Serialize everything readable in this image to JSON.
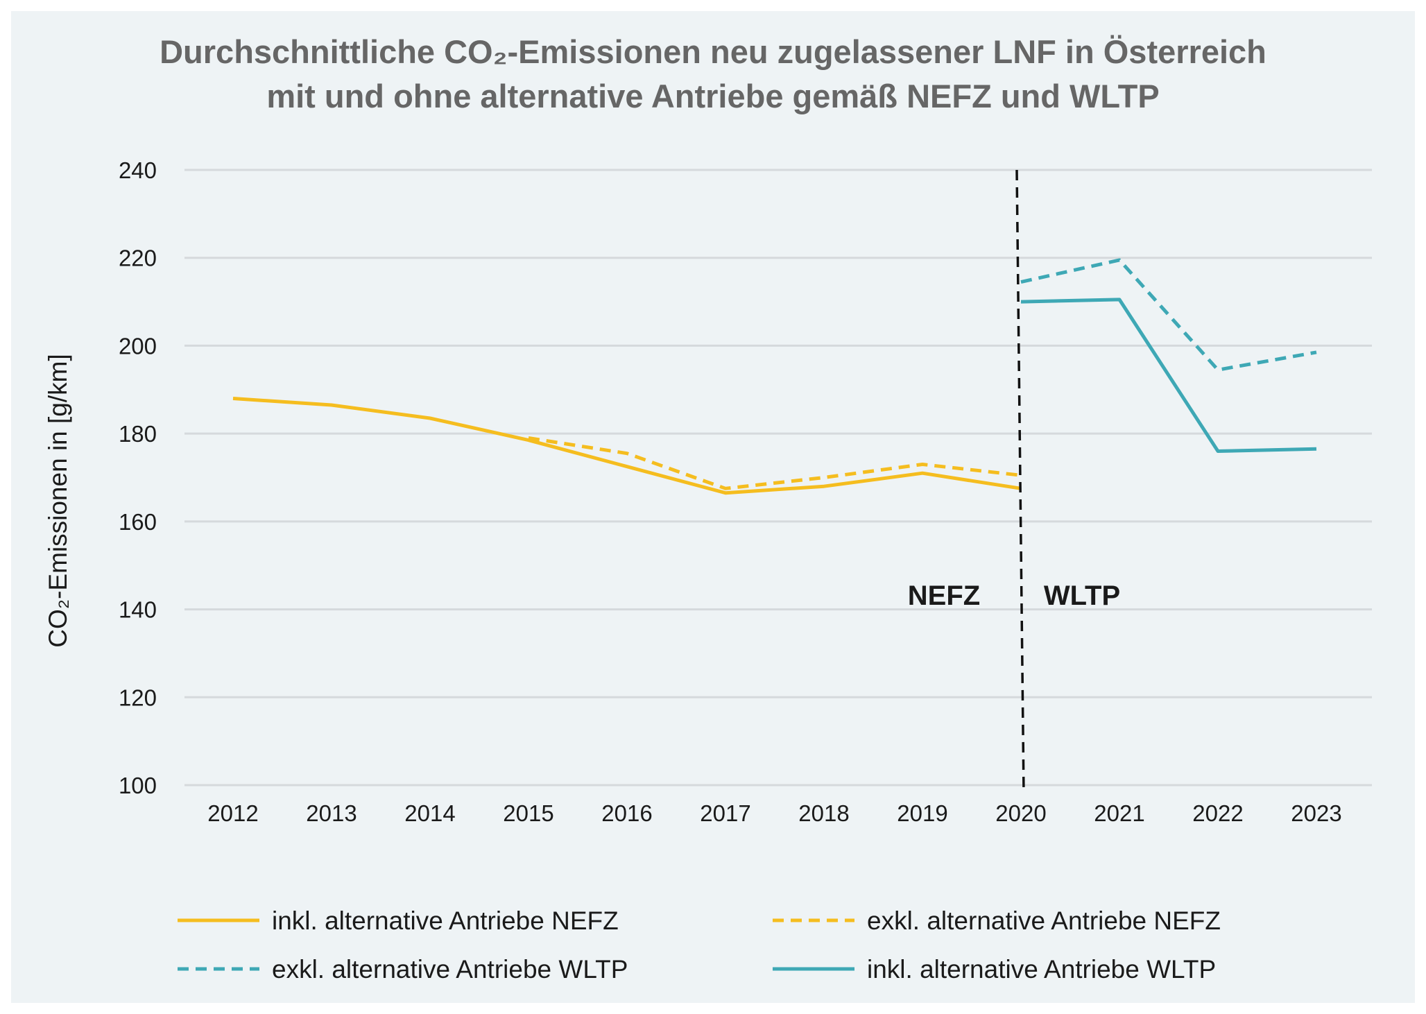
{
  "chart_data": {
    "type": "line",
    "title_line1": "Durchschnittliche CO₂-Emissionen neu zugelassener LNF in Österreich",
    "title_line2": "mit und ohne alternative Antriebe gemäß NEFZ und WLTP",
    "ylabel": "CO₂-Emissionen in [g/km]",
    "xlabel": "",
    "ylim": [
      100,
      240
    ],
    "yticks": [
      100,
      120,
      140,
      160,
      180,
      200,
      220,
      240
    ],
    "categories": [
      "2012",
      "2013",
      "2014",
      "2015",
      "2016",
      "2017",
      "2018",
      "2019",
      "2020",
      "2021",
      "2022",
      "2023"
    ],
    "grid": true,
    "legend_position": "bottom",
    "series": [
      {
        "name": "inkl. alternative Antriebe NEFZ",
        "color": "#f5bd1f",
        "dashed": false,
        "values": [
          188,
          186.5,
          183.5,
          178.5,
          172.5,
          166.5,
          168,
          171,
          167.5,
          null,
          null,
          null
        ]
      },
      {
        "name": "exkl. alternative Antriebe NEFZ",
        "color": "#f5bd1f",
        "dashed": true,
        "values": [
          null,
          null,
          null,
          179,
          175.5,
          167.5,
          170,
          173,
          170.5,
          null,
          null,
          null
        ]
      },
      {
        "name": "exkl. alternative Antriebe WLTP",
        "color": "#3ea8b5",
        "dashed": true,
        "values": [
          null,
          null,
          null,
          null,
          null,
          null,
          null,
          null,
          214.5,
          219.5,
          194.5,
          198.5
        ]
      },
      {
        "name": "inkl. alternative Antriebe WLTP",
        "color": "#3ea8b5",
        "dashed": false,
        "values": [
          null,
          null,
          null,
          null,
          null,
          null,
          null,
          null,
          210,
          210.5,
          176,
          176.5
        ]
      }
    ],
    "annotations": {
      "left_label": "NEFZ",
      "right_label": "WLTP"
    }
  }
}
